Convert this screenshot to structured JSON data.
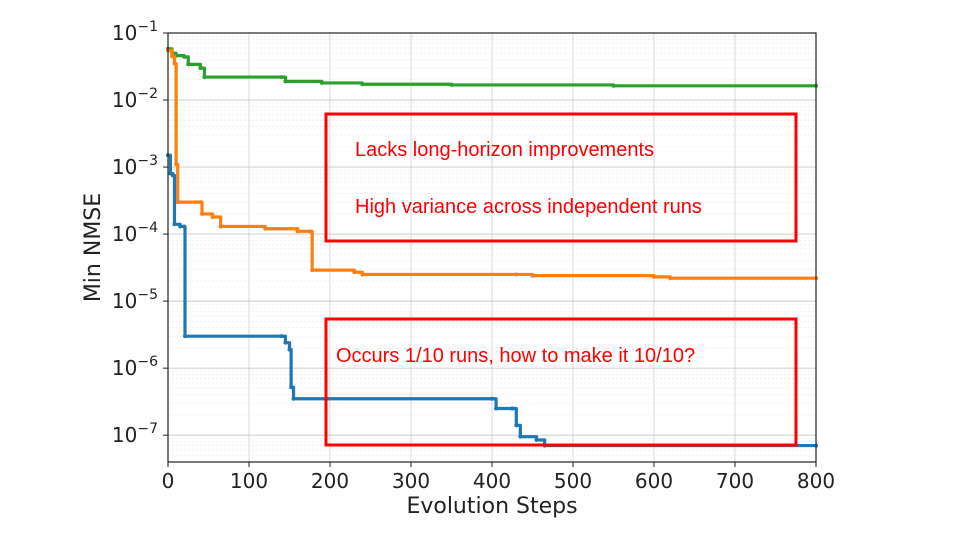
{
  "chart_data": {
    "type": "line",
    "xlabel": "Evolution Steps",
    "ylabel": "Min NMSE",
    "xlim": [
      0,
      800
    ],
    "ylim_log10": [
      -7.4,
      -1
    ],
    "y_scale": "log",
    "grid": true,
    "x_ticks": [
      "0",
      "100",
      "200",
      "300",
      "400",
      "500",
      "600",
      "700",
      "800"
    ],
    "y_ticks": [
      {
        "base": "10",
        "exp": "−1"
      },
      {
        "base": "10",
        "exp": "−2"
      },
      {
        "base": "10",
        "exp": "−3"
      },
      {
        "base": "10",
        "exp": "−4"
      },
      {
        "base": "10",
        "exp": "−5"
      },
      {
        "base": "10",
        "exp": "−6"
      },
      {
        "base": "10",
        "exp": "−7"
      }
    ],
    "series": [
      {
        "color": "#2ca02c",
        "points": [
          [
            0,
            0.058
          ],
          [
            5,
            0.05
          ],
          [
            10,
            0.046
          ],
          [
            20,
            0.044
          ],
          [
            25,
            0.034
          ],
          [
            40,
            0.03
          ],
          [
            45,
            0.022
          ],
          [
            140,
            0.022
          ],
          [
            145,
            0.019
          ],
          [
            190,
            0.018
          ],
          [
            240,
            0.0172
          ],
          [
            350,
            0.0168
          ],
          [
            550,
            0.0163
          ],
          [
            800,
            0.0163
          ]
        ]
      },
      {
        "color": "#ff7f0e",
        "points": [
          [
            0,
            0.055
          ],
          [
            5,
            0.045
          ],
          [
            8,
            0.035
          ],
          [
            10,
            0.0011
          ],
          [
            12,
            0.0003
          ],
          [
            40,
            0.0003
          ],
          [
            42,
            0.0002
          ],
          [
            55,
            0.00018
          ],
          [
            65,
            0.00013
          ],
          [
            120,
            0.00012
          ],
          [
            160,
            0.00011
          ],
          [
            175,
            0.00011
          ],
          [
            178,
            2.9e-05
          ],
          [
            230,
            2.7e-05
          ],
          [
            240,
            2.5e-05
          ],
          [
            430,
            2.5e-05
          ],
          [
            450,
            2.4e-05
          ],
          [
            600,
            2.3e-05
          ],
          [
            620,
            2.2e-05
          ],
          [
            800,
            2.2e-05
          ]
        ]
      },
      {
        "color": "#1f77b4",
        "points": [
          [
            0,
            0.0015
          ],
          [
            3,
            0.0008
          ],
          [
            6,
            0.00075
          ],
          [
            8,
            0.00014
          ],
          [
            15,
            0.00013
          ],
          [
            20,
            0.00013
          ],
          [
            21,
            3e-06
          ],
          [
            140,
            3e-06
          ],
          [
            145,
            2.4e-06
          ],
          [
            150,
            1.9e-06
          ],
          [
            152,
            5.2e-07
          ],
          [
            155,
            3.5e-07
          ],
          [
            400,
            3.5e-07
          ],
          [
            405,
            2.5e-07
          ],
          [
            425,
            2.5e-07
          ],
          [
            430,
            1.4e-07
          ],
          [
            435,
            9.5e-08
          ],
          [
            455,
            8.5e-08
          ],
          [
            465,
            7e-08
          ],
          [
            800,
            7e-08
          ]
        ]
      }
    ],
    "annotations": [
      {
        "lines": [
          "Lacks long-horizon improvements",
          "High variance across independent runs"
        ],
        "color": "#ff0000"
      },
      {
        "lines": [
          "Occurs 1/10 runs, how to make it 10/10?"
        ],
        "color": "#ff0000"
      }
    ]
  }
}
